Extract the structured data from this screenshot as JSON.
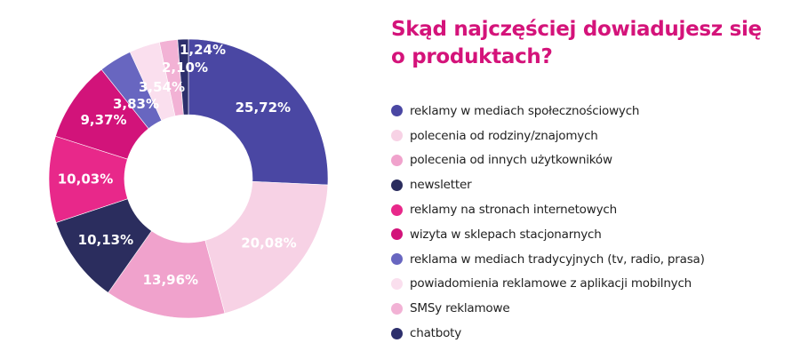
{
  "chart_data": {
    "type": "pie",
    "donut": true,
    "title": "Skąd najczęściej dowiadujesz się o produktach?",
    "legend_position": "right",
    "slices": [
      {
        "name": "reklamy w mediach społecznościowych",
        "value": 25.72,
        "label": "25,72%",
        "color": "#4a47a3"
      },
      {
        "name": "polecenia od rodziny/znajomych",
        "value": 20.08,
        "label": "20,08%",
        "color": "#f7d2e5"
      },
      {
        "name": "polecenia od innych użytkowników",
        "value": 13.96,
        "label": "13,96%",
        "color": "#f0a2cc"
      },
      {
        "name": "newsletter",
        "value": 10.13,
        "label": "10,13%",
        "color": "#2b2d5e"
      },
      {
        "name": "reklamy na stronach internetowych",
        "value": 10.03,
        "label": "10,03%",
        "color": "#e8288a"
      },
      {
        "name": "wizyta w sklepach stacjonarnych",
        "value": 9.37,
        "label": "9,37%",
        "color": "#d2137a"
      },
      {
        "name": "reklama w mediach tradycyjnych (tv, radio, prasa)",
        "value": 3.83,
        "label": "3,83%",
        "color": "#6866c0"
      },
      {
        "name": "powiadomienia reklamowe z aplikacji mobilnych",
        "value": 3.54,
        "label": "3,54%",
        "color": "#fadfee"
      },
      {
        "name": "SMSy reklamowe",
        "value": 2.1,
        "label": "2,10%",
        "color": "#f2b2d5"
      },
      {
        "name": "chatboty",
        "value": 1.24,
        "label": "1,24%",
        "color": "#2d2f6c"
      }
    ]
  }
}
